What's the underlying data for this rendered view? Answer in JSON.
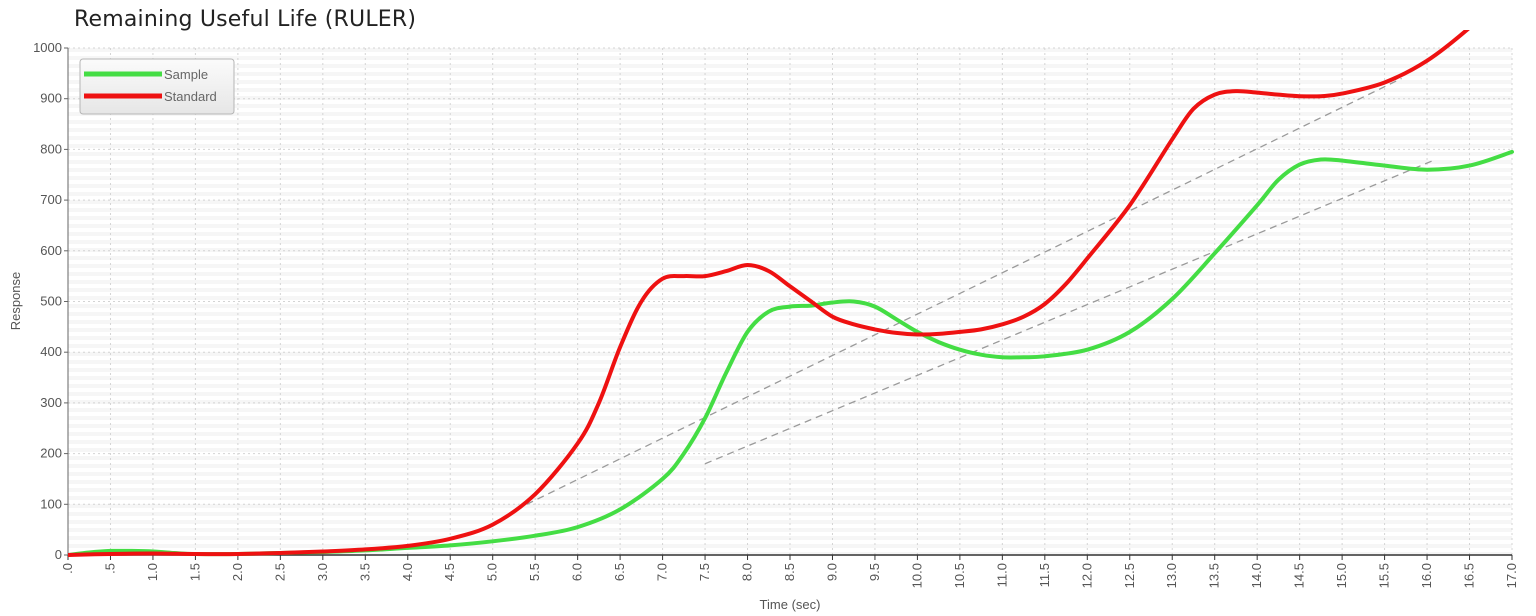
{
  "chart_data": {
    "type": "line",
    "title": "Remaining Useful Life (RULER)",
    "xlabel": "Time (sec)",
    "ylabel": "Response",
    "xlim": [
      0,
      17
    ],
    "ylim": [
      0,
      1000
    ],
    "x_ticks": [
      0,
      0.5,
      1,
      1.5,
      2,
      2.5,
      3,
      3.5,
      4,
      4.5,
      5,
      5.5,
      6,
      6.5,
      7,
      7.5,
      8,
      8.5,
      9,
      9.5,
      10,
      10.5,
      11,
      11.5,
      12,
      12.5,
      13,
      13.5,
      14,
      14.5,
      15,
      15.5,
      16,
      16.5,
      17
    ],
    "x_tick_labels": [
      ".0",
      ".5",
      "1.0",
      "1.5",
      "2.0",
      "2.5",
      "3.0",
      "3.5",
      "4.0",
      "4.5",
      "5.0",
      "5.5",
      "6.0",
      "6.5",
      "7.0",
      "7.5",
      "8.0",
      "8.5",
      "9.0",
      "9.5",
      "10.0",
      "10.5",
      "11.0",
      "11.5",
      "12.0",
      "12.5",
      "13.0",
      "13.5",
      "14.0",
      "14.5",
      "15.0",
      "15.5",
      "16.0",
      "16.5",
      "17.0"
    ],
    "y_ticks": [
      0,
      100,
      200,
      300,
      400,
      500,
      600,
      700,
      800,
      900,
      1000
    ],
    "y_tick_labels": [
      "0",
      "100",
      "200",
      "300",
      "400",
      "500",
      "600",
      "700",
      "800",
      "900",
      "1000"
    ],
    "grid": true,
    "legend_position": "top-left",
    "series": [
      {
        "name": "Sample",
        "color": "#44dd44",
        "x": [
          0,
          0.25,
          0.5,
          0.75,
          1.0,
          1.25,
          1.5,
          2.0,
          2.5,
          3.0,
          3.5,
          4.0,
          4.5,
          5.0,
          5.5,
          6.0,
          6.5,
          7.0,
          7.25,
          7.5,
          7.75,
          8.0,
          8.25,
          8.5,
          8.75,
          9.0,
          9.25,
          9.5,
          9.75,
          10.0,
          10.25,
          10.5,
          10.75,
          11.0,
          11.25,
          11.5,
          12.0,
          12.5,
          13.0,
          13.5,
          14.0,
          14.25,
          14.5,
          14.75,
          15.0,
          15.5,
          16.0,
          16.5,
          17.0
        ],
        "y": [
          0,
          5,
          8,
          8,
          7,
          4,
          2,
          2,
          4,
          6,
          9,
          14,
          19,
          27,
          38,
          55,
          90,
          150,
          200,
          270,
          360,
          440,
          480,
          490,
          492,
          498,
          500,
          490,
          465,
          440,
          420,
          405,
          395,
          390,
          390,
          392,
          405,
          440,
          505,
          595,
          690,
          740,
          770,
          780,
          778,
          768,
          760,
          768,
          795
        ]
      },
      {
        "name": "Standard",
        "color": "#ee1111",
        "x": [
          0,
          0.5,
          1.0,
          1.5,
          2.0,
          2.5,
          3.0,
          3.5,
          4.0,
          4.5,
          5.0,
          5.5,
          6.0,
          6.25,
          6.5,
          6.75,
          7.0,
          7.25,
          7.5,
          7.75,
          8.0,
          8.25,
          8.5,
          8.75,
          9.0,
          9.25,
          9.5,
          9.75,
          10.0,
          10.25,
          10.5,
          10.75,
          11.0,
          11.25,
          11.5,
          11.75,
          12.0,
          12.5,
          13.0,
          13.25,
          13.5,
          13.75,
          14.0,
          14.25,
          14.5,
          14.75,
          15.0,
          15.5,
          16.0,
          16.5,
          16.7
        ],
        "y": [
          0,
          2,
          3,
          2,
          2,
          4,
          7,
          11,
          18,
          32,
          60,
          120,
          220,
          300,
          410,
          500,
          545,
          550,
          550,
          560,
          572,
          560,
          530,
          500,
          470,
          455,
          445,
          438,
          435,
          436,
          440,
          445,
          455,
          470,
          495,
          535,
          585,
          690,
          820,
          880,
          908,
          915,
          912,
          908,
          905,
          905,
          910,
          932,
          975,
          1040,
          1075
        ]
      }
    ],
    "annotations": [
      {
        "x": [
          5.4,
          15.7
        ],
        "y": [
          100,
          940
        ]
      },
      {
        "x": [
          7.5,
          16.1
        ],
        "y": [
          180,
          780
        ]
      }
    ]
  }
}
